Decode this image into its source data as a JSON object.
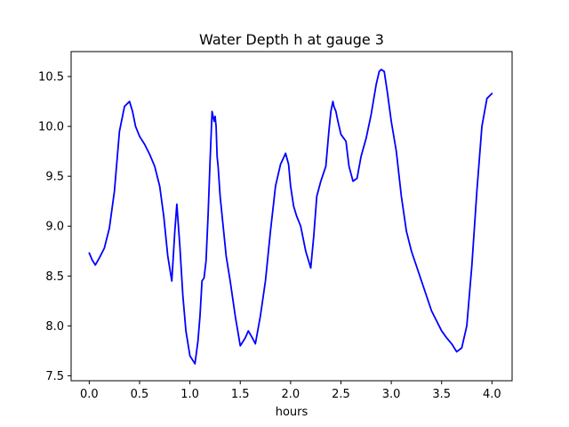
{
  "chart_data": {
    "type": "line",
    "title": "Water Depth h at gauge 3",
    "xlabel": "hours",
    "ylabel": "",
    "xlim": [
      -0.18,
      4.2
    ],
    "ylim": [
      7.45,
      10.75
    ],
    "xticks": [
      0.0,
      0.5,
      1.0,
      1.5,
      2.0,
      2.5,
      3.0,
      3.5,
      4.0
    ],
    "xtick_labels": [
      "0.0",
      "0.5",
      "1.0",
      "1.5",
      "2.0",
      "2.5",
      "3.0",
      "3.5",
      "4.0"
    ],
    "yticks": [
      7.5,
      8.0,
      8.5,
      9.0,
      9.5,
      10.0,
      10.5
    ],
    "ytick_labels": [
      "7.5",
      "8.0",
      "8.5",
      "9.0",
      "9.5",
      "10.0",
      "10.5"
    ],
    "grid": false,
    "colors": {
      "line": "#0000ff",
      "axes": "#000000",
      "background": "#ffffff"
    },
    "series": [
      {
        "x": [
          0.0,
          0.03,
          0.06,
          0.1,
          0.15,
          0.2,
          0.25,
          0.3,
          0.35,
          0.4,
          0.43,
          0.46,
          0.5,
          0.55,
          0.6,
          0.65,
          0.7,
          0.74,
          0.78,
          0.82,
          0.85,
          0.87,
          0.9,
          0.93,
          0.96,
          1.0,
          1.05,
          1.08,
          1.1,
          1.12,
          1.14,
          1.16,
          1.18,
          1.2,
          1.22,
          1.24,
          1.25,
          1.26,
          1.27,
          1.28,
          1.3,
          1.33,
          1.36,
          1.4,
          1.45,
          1.5,
          1.55,
          1.58,
          1.62,
          1.65,
          1.7,
          1.75,
          1.8,
          1.85,
          1.9,
          1.95,
          1.98,
          2.0,
          2.03,
          2.06,
          2.1,
          2.15,
          2.2,
          2.23,
          2.26,
          2.3,
          2.35,
          2.38,
          2.4,
          2.42,
          2.43,
          2.45,
          2.47,
          2.5,
          2.55,
          2.58,
          2.62,
          2.66,
          2.7,
          2.75,
          2.8,
          2.85,
          2.88,
          2.9,
          2.93,
          2.96,
          3.0,
          3.05,
          3.1,
          3.15,
          3.2,
          3.3,
          3.4,
          3.5,
          3.55,
          3.6,
          3.65,
          3.7,
          3.75,
          3.8,
          3.85,
          3.9,
          3.95,
          4.0
        ],
        "values": [
          8.73,
          8.66,
          8.61,
          8.68,
          8.78,
          8.98,
          9.35,
          9.95,
          10.2,
          10.25,
          10.15,
          10.0,
          9.9,
          9.82,
          9.72,
          9.6,
          9.4,
          9.1,
          8.7,
          8.45,
          8.95,
          9.22,
          8.8,
          8.3,
          7.95,
          7.7,
          7.62,
          7.85,
          8.1,
          8.45,
          8.48,
          8.65,
          9.1,
          9.65,
          10.15,
          10.05,
          10.1,
          10.0,
          9.7,
          9.6,
          9.3,
          9.0,
          8.7,
          8.45,
          8.1,
          7.8,
          7.88,
          7.95,
          7.88,
          7.82,
          8.1,
          8.45,
          8.95,
          9.4,
          9.62,
          9.73,
          9.62,
          9.4,
          9.2,
          9.1,
          9.0,
          8.75,
          8.58,
          8.9,
          9.3,
          9.45,
          9.6,
          9.95,
          10.15,
          10.25,
          10.2,
          10.15,
          10.05,
          9.92,
          9.85,
          9.6,
          9.45,
          9.48,
          9.7,
          9.88,
          10.12,
          10.42,
          10.55,
          10.57,
          10.55,
          10.35,
          10.05,
          9.75,
          9.3,
          8.95,
          8.75,
          8.45,
          8.15,
          7.95,
          7.88,
          7.82,
          7.74,
          7.78,
          8.0,
          8.6,
          9.35,
          10.0,
          10.28,
          10.33
        ]
      }
    ]
  }
}
